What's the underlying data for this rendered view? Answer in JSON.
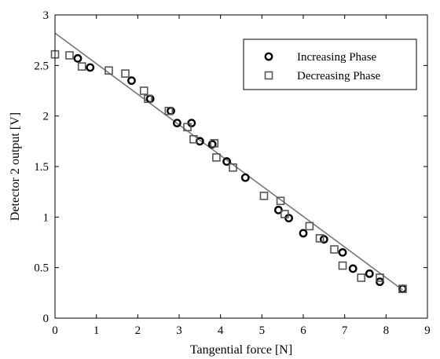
{
  "chart_data": {
    "type": "scatter",
    "title": "",
    "xlabel": "Tangential force [N]",
    "ylabel": "Detector 2 output [V]",
    "xlim": [
      0,
      9
    ],
    "ylim": [
      0,
      3
    ],
    "xticks": [
      0,
      1,
      2,
      3,
      4,
      5,
      6,
      7,
      8,
      9
    ],
    "yticks": [
      0,
      0.5,
      1,
      1.5,
      2,
      2.5,
      3
    ],
    "xtick_labels": [
      "0",
      "1",
      "2",
      "3",
      "4",
      "5",
      "6",
      "7",
      "8",
      "9"
    ],
    "ytick_labels": [
      "0",
      "0.5",
      "1",
      "1.5",
      "2",
      "2.5",
      "3"
    ],
    "grid": false,
    "legend_position": "top-right",
    "series": [
      {
        "name": "Increasing Phase",
        "marker": "circle",
        "color": "#000000",
        "points": [
          [
            0.55,
            2.57
          ],
          [
            0.85,
            2.48
          ],
          [
            1.85,
            2.35
          ],
          [
            2.3,
            2.17
          ],
          [
            2.8,
            2.05
          ],
          [
            2.95,
            1.93
          ],
          [
            3.3,
            1.93
          ],
          [
            3.5,
            1.75
          ],
          [
            3.8,
            1.72
          ],
          [
            4.15,
            1.55
          ],
          [
            4.6,
            1.39
          ],
          [
            5.4,
            1.07
          ],
          [
            5.65,
            0.99
          ],
          [
            6.0,
            0.84
          ],
          [
            6.5,
            0.78
          ],
          [
            6.95,
            0.65
          ],
          [
            7.2,
            0.49
          ],
          [
            7.6,
            0.44
          ],
          [
            7.85,
            0.36
          ],
          [
            8.4,
            0.29
          ]
        ]
      },
      {
        "name": "Decreasing Phase",
        "marker": "square",
        "color": "#555555",
        "points": [
          [
            0.0,
            2.61
          ],
          [
            0.35,
            2.6
          ],
          [
            0.65,
            2.49
          ],
          [
            1.3,
            2.45
          ],
          [
            1.7,
            2.42
          ],
          [
            2.15,
            2.25
          ],
          [
            2.25,
            2.17
          ],
          [
            2.75,
            2.05
          ],
          [
            3.2,
            1.89
          ],
          [
            3.35,
            1.77
          ],
          [
            3.85,
            1.73
          ],
          [
            3.9,
            1.59
          ],
          [
            4.3,
            1.49
          ],
          [
            5.05,
            1.21
          ],
          [
            5.45,
            1.16
          ],
          [
            5.55,
            1.03
          ],
          [
            6.15,
            0.91
          ],
          [
            6.4,
            0.79
          ],
          [
            6.75,
            0.68
          ],
          [
            6.95,
            0.52
          ],
          [
            7.4,
            0.4
          ],
          [
            7.85,
            0.4
          ],
          [
            8.4,
            0.29
          ]
        ]
      }
    ],
    "fit_line": {
      "x": [
        0,
        8.4
      ],
      "y": [
        2.82,
        0.28
      ],
      "color": "#777777"
    }
  }
}
